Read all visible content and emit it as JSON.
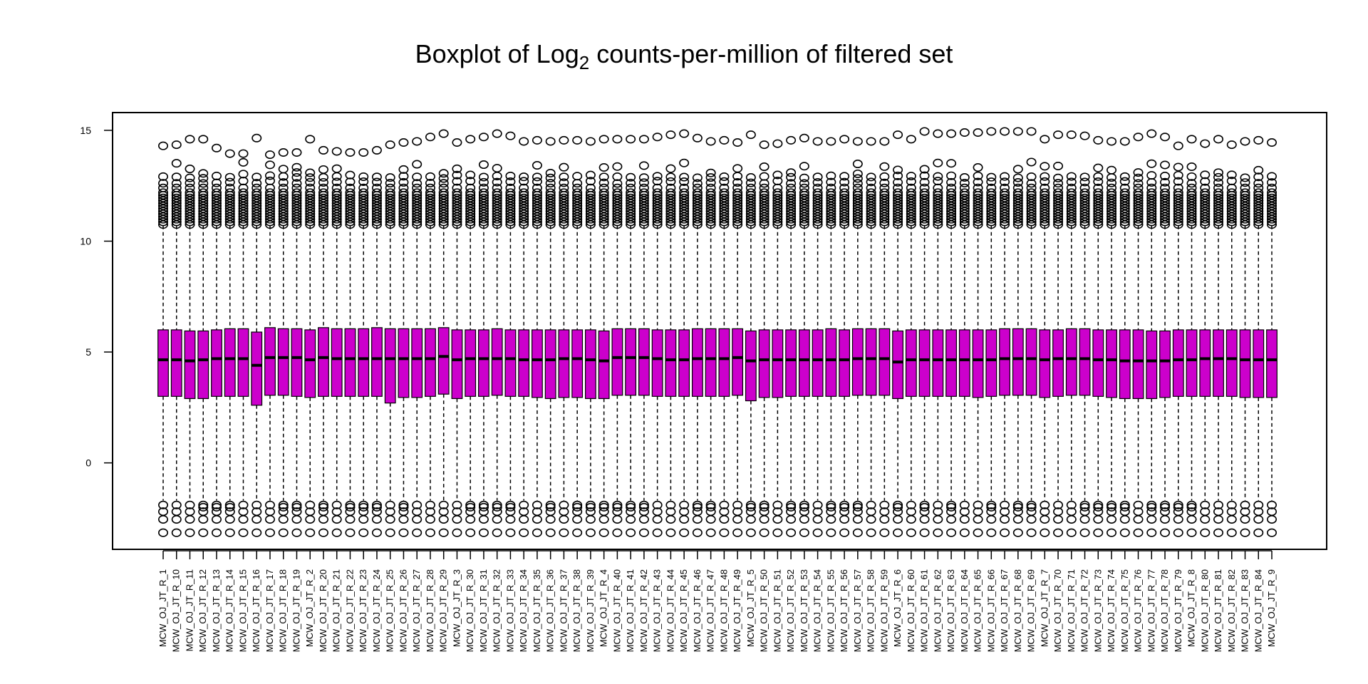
{
  "chart_data": {
    "type": "boxplot",
    "title": "Boxplot of Log2 counts-per-million of filtered set",
    "title_parts": {
      "before": "Boxplot of Log",
      "subscript": "2",
      "after": " counts-per-million of filtered set"
    },
    "xlabel": "",
    "ylabel": "",
    "ylim": [
      -3.9,
      15.8
    ],
    "yticks": [
      0,
      5,
      10,
      15
    ],
    "box_color": "#CC00CC",
    "grid": false,
    "legend": "none",
    "categories": [
      "MCW_OJ_JT_R_1",
      "MCW_OJ_JT_R_10",
      "MCW_OJ_JT_R_11",
      "MCW_OJ_JT_R_12",
      "MCW_OJ_JT_R_13",
      "MCW_OJ_JT_R_14",
      "MCW_OJ_JT_R_15",
      "MCW_OJ_JT_R_16",
      "MCW_OJ_JT_R_17",
      "MCW_OJ_JT_R_18",
      "MCW_OJ_JT_R_19",
      "MCW_OJ_JT_R_2",
      "MCW_OJ_JT_R_20",
      "MCW_OJ_JT_R_21",
      "MCW_OJ_JT_R_22",
      "MCW_OJ_JT_R_23",
      "MCW_OJ_JT_R_24",
      "MCW_OJ_JT_R_25",
      "MCW_OJ_JT_R_26",
      "MCW_OJ_JT_R_27",
      "MCW_OJ_JT_R_28",
      "MCW_OJ_JT_R_29",
      "MCW_OJ_JT_R_3",
      "MCW_OJ_JT_R_30",
      "MCW_OJ_JT_R_31",
      "MCW_OJ_JT_R_32",
      "MCW_OJ_JT_R_33",
      "MCW_OJ_JT_R_34",
      "MCW_OJ_JT_R_35",
      "MCW_OJ_JT_R_36",
      "MCW_OJ_JT_R_37",
      "MCW_OJ_JT_R_38",
      "MCW_OJ_JT_R_39",
      "MCW_OJ_JT_R_4",
      "MCW_OJ_JT_R_40",
      "MCW_OJ_JT_R_41",
      "MCW_OJ_JT_R_42",
      "MCW_OJ_JT_R_43",
      "MCW_OJ_JT_R_44",
      "MCW_OJ_JT_R_45",
      "MCW_OJ_JT_R_46",
      "MCW_OJ_JT_R_47",
      "MCW_OJ_JT_R_48",
      "MCW_OJ_JT_R_49",
      "MCW_OJ_JT_R_5",
      "MCW_OJ_JT_R_50",
      "MCW_OJ_JT_R_51",
      "MCW_OJ_JT_R_52",
      "MCW_OJ_JT_R_53",
      "MCW_OJ_JT_R_54",
      "MCW_OJ_JT_R_55",
      "MCW_OJ_JT_R_56",
      "MCW_OJ_JT_R_57",
      "MCW_OJ_JT_R_58",
      "MCW_OJ_JT_R_59",
      "MCW_OJ_JT_R_6",
      "MCW_OJ_JT_R_60",
      "MCW_OJ_JT_R_61",
      "MCW_OJ_JT_R_62",
      "MCW_OJ_JT_R_63",
      "MCW_OJ_JT_R_64",
      "MCW_OJ_JT_R_65",
      "MCW_OJ_JT_R_66",
      "MCW_OJ_JT_R_67",
      "MCW_OJ_JT_R_68",
      "MCW_OJ_JT_R_69",
      "MCW_OJ_JT_R_7",
      "MCW_OJ_JT_R_70",
      "MCW_OJ_JT_R_71",
      "MCW_OJ_JT_R_72",
      "MCW_OJ_JT_R_73",
      "MCW_OJ_JT_R_74",
      "MCW_OJ_JT_R_75",
      "MCW_OJ_JT_R_76",
      "MCW_OJ_JT_R_77",
      "MCW_OJ_JT_R_78",
      "MCW_OJ_JT_R_79",
      "MCW_OJ_JT_R_8",
      "MCW_OJ_JT_R_80",
      "MCW_OJ_JT_R_81",
      "MCW_OJ_JT_R_82",
      "MCW_OJ_JT_R_83",
      "MCW_OJ_JT_R_84",
      "MCW_OJ_JT_R_9"
    ],
    "median": [
      4.65,
      4.65,
      4.6,
      4.65,
      4.7,
      4.7,
      4.7,
      4.4,
      4.75,
      4.75,
      4.75,
      4.65,
      4.75,
      4.7,
      4.7,
      4.7,
      4.7,
      4.7,
      4.7,
      4.7,
      4.7,
      4.8,
      4.65,
      4.7,
      4.7,
      4.7,
      4.7,
      4.65,
      4.65,
      4.65,
      4.7,
      4.7,
      4.65,
      4.6,
      4.75,
      4.75,
      4.75,
      4.7,
      4.65,
      4.65,
      4.7,
      4.7,
      4.7,
      4.75,
      4.6,
      4.65,
      4.65,
      4.65,
      4.65,
      4.65,
      4.65,
      4.65,
      4.7,
      4.7,
      4.7,
      4.55,
      4.65,
      4.65,
      4.65,
      4.65,
      4.65,
      4.65,
      4.65,
      4.7,
      4.7,
      4.7,
      4.65,
      4.7,
      4.7,
      4.7,
      4.65,
      4.65,
      4.6,
      4.6,
      4.6,
      4.6,
      4.65,
      4.65,
      4.7,
      4.7,
      4.7,
      4.65,
      4.65,
      4.65
    ],
    "q1": [
      3.0,
      3.0,
      2.9,
      2.9,
      3.0,
      3.0,
      3.0,
      2.6,
      3.05,
      3.05,
      3.0,
      2.95,
      3.0,
      3.0,
      3.0,
      3.0,
      3.0,
      2.7,
      2.95,
      2.95,
      3.0,
      3.1,
      2.9,
      3.0,
      3.0,
      3.05,
      3.0,
      3.0,
      2.95,
      2.9,
      2.95,
      2.95,
      2.9,
      2.9,
      3.05,
      3.05,
      3.05,
      3.0,
      3.0,
      3.0,
      3.0,
      3.0,
      3.0,
      3.05,
      2.8,
      2.95,
      2.95,
      3.0,
      3.0,
      3.0,
      3.0,
      3.0,
      3.05,
      3.05,
      3.05,
      2.9,
      3.0,
      3.0,
      3.0,
      3.0,
      3.0,
      2.95,
      3.0,
      3.05,
      3.05,
      3.05,
      2.95,
      3.0,
      3.05,
      3.05,
      3.0,
      2.95,
      2.9,
      2.9,
      2.9,
      2.95,
      3.0,
      3.0,
      3.0,
      3.0,
      3.0,
      2.95,
      2.95,
      2.95
    ],
    "q3": [
      6.0,
      6.0,
      5.95,
      5.95,
      6.0,
      6.05,
      6.05,
      5.9,
      6.1,
      6.05,
      6.05,
      6.0,
      6.1,
      6.05,
      6.05,
      6.05,
      6.1,
      6.05,
      6.05,
      6.05,
      6.05,
      6.1,
      6.0,
      6.0,
      6.0,
      6.05,
      6.0,
      6.0,
      6.0,
      6.0,
      6.0,
      6.0,
      6.0,
      5.95,
      6.05,
      6.05,
      6.05,
      6.0,
      6.0,
      6.0,
      6.05,
      6.05,
      6.05,
      6.05,
      5.95,
      6.0,
      6.0,
      6.0,
      6.0,
      6.0,
      6.05,
      6.0,
      6.05,
      6.05,
      6.05,
      5.95,
      6.0,
      6.0,
      6.0,
      6.0,
      6.0,
      6.0,
      6.0,
      6.05,
      6.05,
      6.05,
      6.0,
      6.0,
      6.05,
      6.05,
      6.0,
      6.0,
      6.0,
      6.0,
      5.95,
      5.95,
      6.0,
      6.0,
      6.0,
      6.0,
      6.0,
      6.0,
      6.0,
      6.0
    ],
    "whisker_low": -1.7,
    "whisker_high": 10.7,
    "outlier_max": [
      14.3,
      14.35,
      14.6,
      14.6,
      14.2,
      13.95,
      13.95,
      14.65,
      13.9,
      14.0,
      14.0,
      14.6,
      14.1,
      14.05,
      14.0,
      14.0,
      14.1,
      14.35,
      14.45,
      14.5,
      14.7,
      14.85,
      14.45,
      14.6,
      14.7,
      14.85,
      14.75,
      14.5,
      14.55,
      14.5,
      14.55,
      14.55,
      14.5,
      14.6,
      14.6,
      14.6,
      14.6,
      14.7,
      14.8,
      14.85,
      14.65,
      14.5,
      14.55,
      14.45,
      14.8,
      14.35,
      14.4,
      14.55,
      14.65,
      14.5,
      14.5,
      14.6,
      14.5,
      14.5,
      14.5,
      14.8,
      14.6,
      14.95,
      14.85,
      14.85,
      14.9,
      14.9,
      14.95,
      14.95,
      14.95,
      14.95,
      14.6,
      14.8,
      14.8,
      14.75,
      14.55,
      14.5,
      14.5,
      14.7,
      14.85,
      14.7,
      14.3,
      14.6,
      14.4,
      14.6,
      14.35,
      14.5,
      14.55,
      14.45
    ],
    "outlier_min": -3.15
  }
}
